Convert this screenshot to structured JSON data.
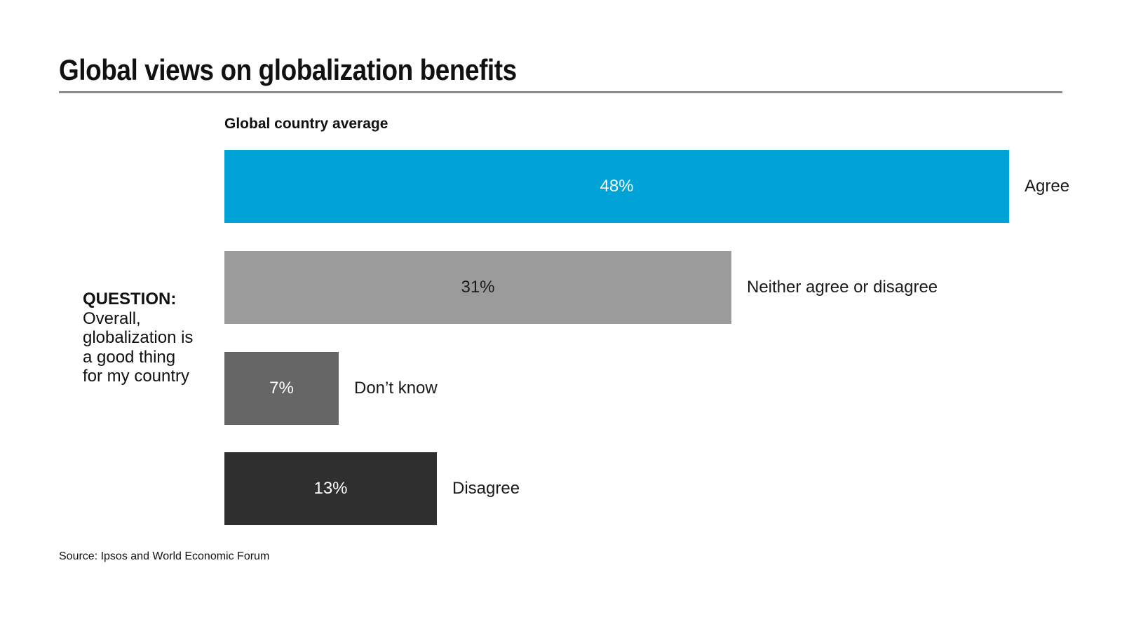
{
  "page": {
    "title": "Global views on globalization benefits",
    "subtitle": "Global country average",
    "source": "Source: Ipsos and World Economic Forum"
  },
  "question": {
    "heading": "QUESTION:",
    "lines": [
      "Overall,",
      "globalization is",
      "a good thing",
      "for my country"
    ]
  },
  "chart_data": {
    "type": "bar",
    "orientation": "horizontal",
    "title": "Global country average",
    "categories": [
      "Agree",
      "Neither agree or disagree",
      "Don’t know",
      "Disagree"
    ],
    "values": [
      48,
      31,
      7,
      13
    ],
    "unit": "%",
    "xlim": [
      0,
      48
    ],
    "grid": false,
    "legend": "none",
    "bars": [
      {
        "label": "Agree",
        "value": 48,
        "display": "48%",
        "color": "#00a3d7",
        "value_color": "#ffffff"
      },
      {
        "label": "Neither agree or disagree",
        "value": 31,
        "display": "31%",
        "color": "#9b9b9b",
        "value_color": "#1a1a1a"
      },
      {
        "label": "Don’t know",
        "value": 7,
        "display": "7%",
        "color": "#666666",
        "value_color": "#ffffff"
      },
      {
        "label": "Disagree",
        "value": 13,
        "display": "13%",
        "color": "#2f2f2f",
        "value_color": "#ffffff"
      }
    ]
  },
  "colors": {
    "accent_cyan": "#00a3d7",
    "mid_gray": "#9b9b9b",
    "dark_gray": "#666666",
    "near_black": "#2f2f2f",
    "rule_gray": "#8c8c8c",
    "text": "#111111"
  }
}
